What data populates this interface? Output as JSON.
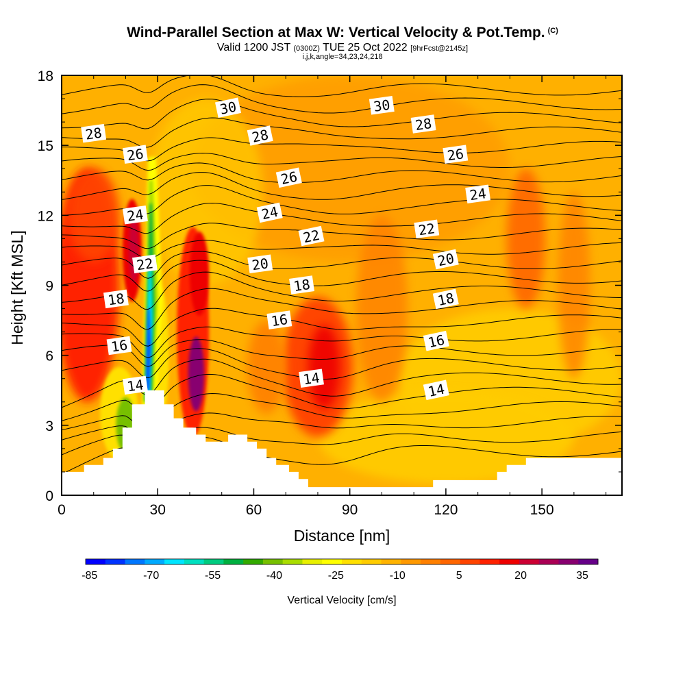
{
  "title": "Wind-Parallel Section at Max W: Vertical Velocity & Pot.Temp.",
  "title_mark": "(C)",
  "subtitle": {
    "valid": "Valid 1200 JST",
    "utc": "(0300Z)",
    "date": "TUE 25 Oct 2022",
    "fcst": "[9hrFcst@2145z]"
  },
  "subsubtitle": "i,j,k,angle=34,23,24,218",
  "chart_data": {
    "type": "heatmap",
    "title": "Wind-Parallel Section at Max W: Vertical Velocity & Pot.Temp.",
    "xlabel": "Distance [nm]",
    "ylabel": "Height [Kft MSL]",
    "xlim": [
      0,
      175
    ],
    "ylim": [
      0,
      18
    ],
    "x_ticks": [
      0,
      30,
      60,
      90,
      120,
      150
    ],
    "y_ticks": [
      0,
      3,
      6,
      9,
      12,
      15,
      18
    ],
    "colorbar": {
      "label": "Vertical Velocity [cm/s]",
      "tick_values": [
        -85,
        -70,
        -55,
        -40,
        -25,
        -10,
        5,
        20,
        35
      ],
      "colors": [
        "#0000ff",
        "#0033ff",
        "#0077ff",
        "#00aaff",
        "#00e5ff",
        "#00e0c0",
        "#00cc80",
        "#00b040",
        "#33aa00",
        "#77c000",
        "#aadd00",
        "#e8f000",
        "#ffff00",
        "#ffe000",
        "#ffcc00",
        "#ffb300",
        "#ff9900",
        "#ff8000",
        "#ff6600",
        "#ff4400",
        "#ff2200",
        "#ee0000",
        "#cc0033",
        "#aa0055",
        "#880070",
        "#660088"
      ]
    },
    "w_field_features": [
      {
        "kind": "updraft",
        "x": 20,
        "y": 9,
        "w_cm_s": 20
      },
      {
        "kind": "downdraft",
        "x": 26,
        "y": 7,
        "w_cm_s": -85
      },
      {
        "kind": "updraft",
        "x": 42,
        "y": 5,
        "w_cm_s": 35
      },
      {
        "kind": "updraft",
        "x": 82,
        "y": 5.5,
        "w_cm_s": 20
      }
    ],
    "contour_labels": [
      {
        "value": "30",
        "x": 52,
        "y": 16.6
      },
      {
        "value": "30",
        "x": 100,
        "y": 16.7
      },
      {
        "value": "28",
        "x": 10,
        "y": 15.5
      },
      {
        "value": "28",
        "x": 62,
        "y": 15.4
      },
      {
        "value": "28",
        "x": 113,
        "y": 15.9
      },
      {
        "value": "26",
        "x": 23,
        "y": 14.6
      },
      {
        "value": "26",
        "x": 71,
        "y": 13.6
      },
      {
        "value": "26",
        "x": 123,
        "y": 14.6
      },
      {
        "value": "24",
        "x": 23,
        "y": 12.0
      },
      {
        "value": "24",
        "x": 65,
        "y": 12.1
      },
      {
        "value": "24",
        "x": 130,
        "y": 12.9
      },
      {
        "value": "22",
        "x": 26,
        "y": 9.9
      },
      {
        "value": "22",
        "x": 78,
        "y": 11.1
      },
      {
        "value": "22",
        "x": 114,
        "y": 11.4
      },
      {
        "value": "20",
        "x": 62,
        "y": 9.9
      },
      {
        "value": "20",
        "x": 120,
        "y": 10.1
      },
      {
        "value": "18",
        "x": 17,
        "y": 8.4
      },
      {
        "value": "18",
        "x": 75,
        "y": 9.0
      },
      {
        "value": "18",
        "x": 120,
        "y": 8.4
      },
      {
        "value": "16",
        "x": 18,
        "y": 6.4
      },
      {
        "value": "16",
        "x": 68,
        "y": 7.5
      },
      {
        "value": "16",
        "x": 117,
        "y": 6.6
      },
      {
        "value": "14",
        "x": 23,
        "y": 4.7
      },
      {
        "value": "14",
        "x": 78,
        "y": 5.0
      },
      {
        "value": "14",
        "x": 117,
        "y": 4.5
      }
    ],
    "terrain": [
      [
        0,
        1.0
      ],
      [
        7,
        1.0
      ],
      [
        7,
        1.3
      ],
      [
        13,
        1.3
      ],
      [
        13,
        1.6
      ],
      [
        16,
        1.6
      ],
      [
        16,
        2.0
      ],
      [
        19,
        2.0
      ],
      [
        19,
        2.9
      ],
      [
        22,
        2.9
      ],
      [
        22,
        3.9
      ],
      [
        26,
        3.9
      ],
      [
        26,
        4.5
      ],
      [
        32,
        4.5
      ],
      [
        32,
        3.9
      ],
      [
        35,
        3.9
      ],
      [
        35,
        3.3
      ],
      [
        38,
        3.3
      ],
      [
        38,
        2.9
      ],
      [
        42,
        2.9
      ],
      [
        42,
        2.6
      ],
      [
        45,
        2.6
      ],
      [
        45,
        2.3
      ],
      [
        52,
        2.3
      ],
      [
        52,
        2.6
      ],
      [
        58,
        2.6
      ],
      [
        58,
        2.3
      ],
      [
        61,
        2.3
      ],
      [
        61,
        2.0
      ],
      [
        64,
        2.0
      ],
      [
        64,
        1.6
      ],
      [
        67,
        1.6
      ],
      [
        67,
        1.3
      ],
      [
        71,
        1.3
      ],
      [
        71,
        1.0
      ],
      [
        74,
        1.0
      ],
      [
        74,
        0.7
      ],
      [
        77,
        0.7
      ],
      [
        77,
        0.35
      ],
      [
        116,
        0.35
      ],
      [
        116,
        0.65
      ],
      [
        136,
        0.65
      ],
      [
        136,
        1.0
      ],
      [
        139,
        1.0
      ],
      [
        139,
        1.3
      ],
      [
        145,
        1.3
      ],
      [
        145,
        1.6
      ],
      [
        175,
        1.6
      ]
    ]
  }
}
